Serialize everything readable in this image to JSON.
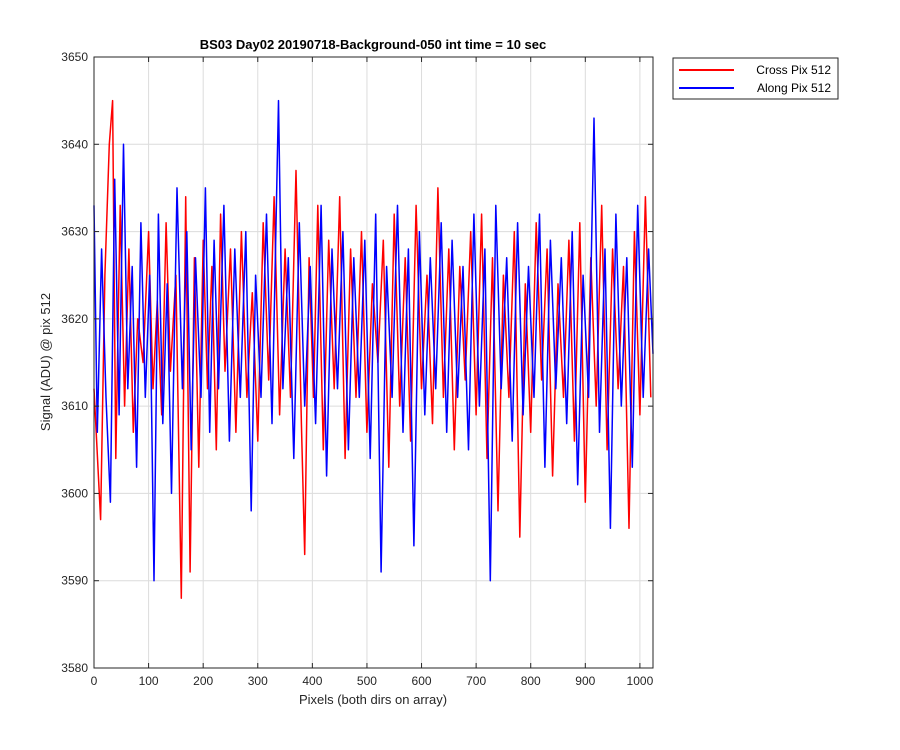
{
  "chart_data": {
    "type": "line",
    "title": "BS03 Day02 20190718-Background-050 int time = 10 sec",
    "xlabel": "Pixels (both dirs on array)",
    "ylabel": "Signal (ADU) @ pix 512",
    "xlim": [
      0,
      1024
    ],
    "ylim": [
      3580,
      3650
    ],
    "xticks": [
      0,
      100,
      200,
      300,
      400,
      500,
      600,
      700,
      800,
      900,
      1000
    ],
    "yticks": [
      3580,
      3590,
      3600,
      3610,
      3620,
      3630,
      3640,
      3650
    ],
    "grid": true,
    "legend_position": "outside top-right",
    "series": [
      {
        "name": "Cross Pix 512",
        "color": "#ff0000",
        "x": [
          0,
          12,
          20,
          28,
          34,
          40,
          48,
          56,
          64,
          72,
          80,
          90,
          100,
          108,
          116,
          124,
          132,
          140,
          150,
          160,
          168,
          176,
          184,
          192,
          200,
          208,
          216,
          224,
          232,
          240,
          250,
          260,
          270,
          280,
          290,
          300,
          310,
          320,
          330,
          340,
          350,
          360,
          370,
          380,
          386,
          394,
          402,
          410,
          420,
          430,
          440,
          450,
          460,
          470,
          480,
          490,
          500,
          510,
          520,
          530,
          540,
          550,
          560,
          570,
          580,
          590,
          600,
          610,
          620,
          630,
          640,
          650,
          660,
          670,
          680,
          690,
          700,
          710,
          720,
          730,
          740,
          750,
          760,
          770,
          780,
          790,
          800,
          810,
          820,
          830,
          840,
          850,
          860,
          870,
          880,
          890,
          900,
          910,
          920,
          930,
          940,
          950,
          960,
          970,
          980,
          990,
          1000,
          1010,
          1020
        ],
        "y": [
          3612,
          3597,
          3625,
          3640,
          3645,
          3604,
          3633,
          3610,
          3628,
          3607,
          3620,
          3615,
          3630,
          3612,
          3622,
          3609,
          3631,
          3614,
          3625,
          3588,
          3634,
          3591,
          3627,
          3603,
          3629,
          3612,
          3626,
          3605,
          3632,
          3614,
          3628,
          3607,
          3630,
          3611,
          3623,
          3606,
          3631,
          3613,
          3634,
          3609,
          3628,
          3611,
          3637,
          3608,
          3593,
          3627,
          3611,
          3633,
          3605,
          3629,
          3612,
          3634,
          3604,
          3628,
          3611,
          3630,
          3607,
          3624,
          3615,
          3629,
          3603,
          3632,
          3610,
          3627,
          3606,
          3633,
          3612,
          3625,
          3608,
          3635,
          3611,
          3628,
          3605,
          3626,
          3613,
          3630,
          3609,
          3632,
          3604,
          3627,
          3598,
          3625,
          3611,
          3630,
          3595,
          3624,
          3607,
          3631,
          3613,
          3628,
          3602,
          3624,
          3611,
          3629,
          3606,
          3631,
          3599,
          3627,
          3610,
          3633,
          3605,
          3628,
          3612,
          3626,
          3596,
          3630,
          3609,
          3634,
          3611
        ]
      },
      {
        "name": "Along Pix 512",
        "color": "#0000ff",
        "x": [
          0,
          6,
          14,
          22,
          30,
          38,
          46,
          54,
          62,
          70,
          78,
          86,
          94,
          102,
          110,
          118,
          126,
          134,
          142,
          152,
          162,
          170,
          178,
          186,
          196,
          204,
          212,
          220,
          228,
          238,
          248,
          258,
          268,
          278,
          288,
          296,
          306,
          316,
          326,
          338,
          346,
          356,
          366,
          376,
          386,
          396,
          406,
          416,
          426,
          436,
          446,
          456,
          466,
          476,
          486,
          496,
          506,
          516,
          526,
          536,
          546,
          556,
          566,
          576,
          586,
          596,
          606,
          616,
          626,
          636,
          646,
          656,
          666,
          676,
          686,
          696,
          706,
          716,
          726,
          736,
          746,
          756,
          766,
          776,
          786,
          796,
          806,
          816,
          826,
          836,
          846,
          856,
          866,
          876,
          886,
          896,
          906,
          916,
          926,
          936,
          946,
          956,
          966,
          976,
          986,
          996,
          1006,
          1016,
          1024
        ],
        "y": [
          3633,
          3607,
          3628,
          3611,
          3599,
          3636,
          3609,
          3640,
          3612,
          3626,
          3603,
          3631,
          3611,
          3625,
          3590,
          3632,
          3608,
          3624,
          3600,
          3635,
          3612,
          3630,
          3605,
          3627,
          3611,
          3635,
          3607,
          3629,
          3612,
          3633,
          3606,
          3628,
          3611,
          3630,
          3598,
          3625,
          3611,
          3632,
          3608,
          3645,
          3612,
          3627,
          3604,
          3631,
          3610,
          3626,
          3608,
          3633,
          3602,
          3628,
          3612,
          3630,
          3605,
          3627,
          3611,
          3629,
          3604,
          3632,
          3591,
          3626,
          3611,
          3633,
          3607,
          3628,
          3594,
          3630,
          3609,
          3627,
          3612,
          3631,
          3607,
          3629,
          3611,
          3626,
          3605,
          3632,
          3610,
          3628,
          3590,
          3633,
          3612,
          3627,
          3606,
          3631,
          3609,
          3626,
          3611,
          3632,
          3603,
          3629,
          3612,
          3627,
          3608,
          3630,
          3601,
          3625,
          3611,
          3643,
          3607,
          3628,
          3596,
          3632,
          3610,
          3627,
          3603,
          3633,
          3611,
          3628,
          3616
        ]
      }
    ]
  }
}
